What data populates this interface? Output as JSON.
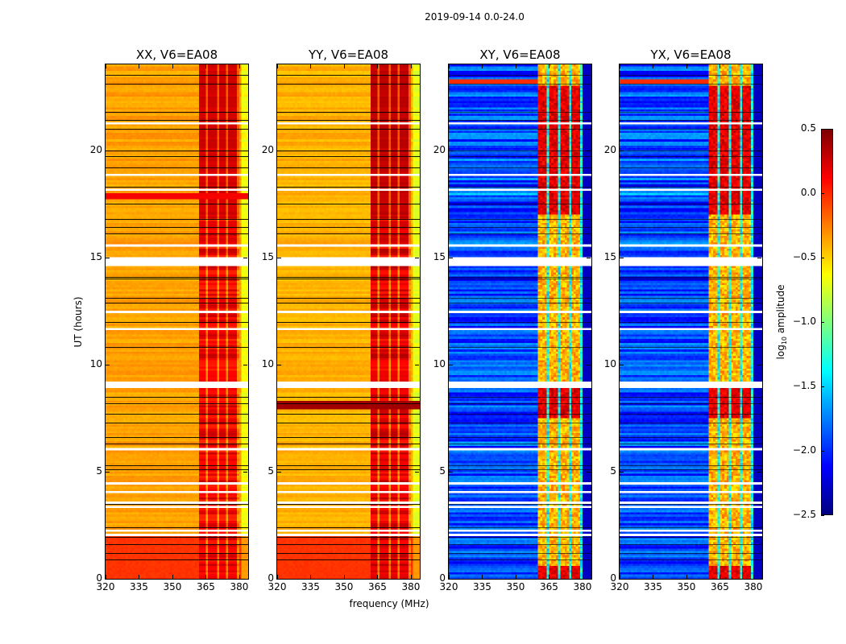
{
  "suptitle": "2019-09-14 0.0-24.0",
  "chart_data": {
    "type": "heatmap",
    "xlabel": "frequency (MHz)",
    "ylabel": "UT (hours)",
    "xlim": [
      320,
      384
    ],
    "ylim": [
      0,
      24
    ],
    "xticks": [
      "320",
      "335",
      "350",
      "365",
      "380"
    ],
    "xtick_values": [
      320,
      335,
      350,
      365,
      380
    ],
    "yticks": [
      "0",
      "5",
      "10",
      "15",
      "20"
    ],
    "ytick_values": [
      0,
      5,
      10,
      15,
      20
    ],
    "colorbar": {
      "label_prefix": "log",
      "label_sub": "10",
      "label_suffix": " amplitude",
      "colormap": "jet",
      "range": [
        -2.5,
        0.5
      ],
      "ticks": [
        "0.5",
        "0.0",
        "−0.5",
        "−1.0",
        "−1.5",
        "−2.0",
        "−2.5"
      ],
      "tick_values": [
        0.5,
        0.0,
        -0.5,
        -1.0,
        -1.5,
        -2.0,
        -2.5
      ]
    },
    "panels": [
      {
        "title": "XX, V6=EA08",
        "kind": "parallel",
        "base": -0.35,
        "low_hours_value": -0.05,
        "rfi_band_mhz": [
          362,
          380
        ],
        "rfi_value": 0.3
      },
      {
        "title": "YY, V6=EA08",
        "kind": "parallel",
        "base": -0.4,
        "low_hours_value": -0.05,
        "rfi_band_mhz": [
          362,
          380
        ],
        "rfi_value": 0.35
      },
      {
        "title": "XY, V6=EA08",
        "kind": "cross",
        "base": -2.0,
        "rfi_band_mhz": [
          360.5,
          379.5
        ],
        "rfi_value": 0.2
      },
      {
        "title": "YX, V6=EA08",
        "kind": "cross",
        "base": -2.0,
        "rfi_band_mhz": [
          360.5,
          379.5
        ],
        "rfi_value": 0.2
      }
    ],
    "flagged_hours": [
      [
        2.0,
        2.1
      ],
      [
        2.25,
        2.3
      ],
      [
        3.3,
        3.38
      ],
      [
        3.55,
        3.6
      ],
      [
        4.0,
        4.06
      ],
      [
        4.4,
        4.46
      ],
      [
        6.0,
        6.06
      ],
      [
        8.9,
        9.15
      ],
      [
        11.6,
        11.66
      ],
      [
        12.4,
        12.46
      ],
      [
        14.6,
        15.0
      ],
      [
        15.5,
        15.56
      ],
      [
        17.0,
        17.04
      ],
      [
        18.1,
        18.15
      ],
      [
        18.8,
        18.86
      ],
      [
        21.2,
        21.25
      ],
      [
        22.9,
        22.95
      ]
    ],
    "break_lines_hours": [
      0.9,
      1.2,
      1.6,
      1.95,
      2.4,
      3.5,
      5.1,
      5.3,
      6.3,
      6.6,
      7.3,
      7.7,
      8.2,
      8.5,
      10.8,
      12.0,
      12.9,
      13.1,
      14.0,
      14.1,
      16.1,
      16.4,
      16.8,
      17.5,
      18.3,
      19.2,
      19.7,
      20.0,
      21.0,
      21.4,
      21.8,
      23.1,
      23.5
    ]
  }
}
